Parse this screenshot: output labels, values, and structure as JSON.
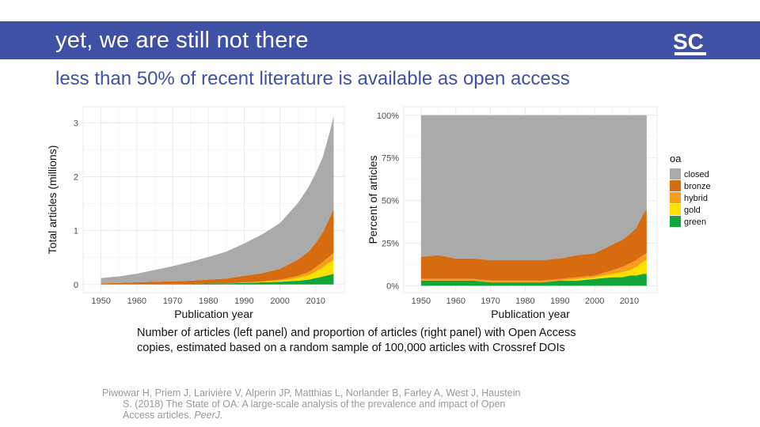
{
  "header": {
    "title": "yet, we are still not there",
    "logo_text": "SC",
    "logo_color": "#ffffff",
    "bar_color": "#3f51a5"
  },
  "subtitle": "less than 50% of recent literature is available as open access",
  "colors": {
    "closed": "#aaaaaa",
    "bronze": "#d66b0f",
    "hybrid": "#f99d1c",
    "gold": "#ffe100",
    "green": "#12a53a"
  },
  "chart_data": [
    {
      "type": "area",
      "stacked": true,
      "xlabel": "Publication year",
      "ylabel": "Total articles (millions)",
      "xlim": [
        1945,
        2018
      ],
      "ylim": [
        -0.15,
        3.3
      ],
      "x_ticks": [
        1950,
        1960,
        1970,
        1980,
        1990,
        2000,
        2010
      ],
      "y_ticks": [
        0,
        1,
        2,
        3
      ],
      "y_tick_labels": [
        "0",
        "1",
        "2",
        "3"
      ],
      "grid": true,
      "x": [
        1950,
        1955,
        1960,
        1965,
        1970,
        1975,
        1980,
        1985,
        1990,
        1995,
        2000,
        2005,
        2008,
        2010,
        2012,
        2014,
        2015
      ],
      "series": [
        {
          "name": "green",
          "values": [
            0.01,
            0.01,
            0.01,
            0.01,
            0.01,
            0.01,
            0.02,
            0.02,
            0.03,
            0.04,
            0.05,
            0.07,
            0.09,
            0.12,
            0.15,
            0.18,
            0.2
          ]
        },
        {
          "name": "gold",
          "values": [
            0.0,
            0.0,
            0.0,
            0.0,
            0.0,
            0.0,
            0.0,
            0.0,
            0.0,
            0.01,
            0.02,
            0.05,
            0.08,
            0.12,
            0.17,
            0.23,
            0.26
          ]
        },
        {
          "name": "hybrid",
          "values": [
            0.0,
            0.0,
            0.0,
            0.0,
            0.0,
            0.0,
            0.0,
            0.0,
            0.01,
            0.01,
            0.02,
            0.04,
            0.06,
            0.08,
            0.1,
            0.12,
            0.13
          ]
        },
        {
          "name": "bronze",
          "values": [
            0.01,
            0.02,
            0.03,
            0.04,
            0.05,
            0.06,
            0.07,
            0.09,
            0.12,
            0.15,
            0.2,
            0.3,
            0.38,
            0.45,
            0.55,
            0.72,
            0.82
          ]
        },
        {
          "name": "closed",
          "values": [
            0.1,
            0.12,
            0.16,
            0.22,
            0.28,
            0.35,
            0.42,
            0.5,
            0.6,
            0.72,
            0.85,
            1.05,
            1.2,
            1.3,
            1.4,
            1.6,
            1.72
          ]
        }
      ]
    },
    {
      "type": "area",
      "stacked": true,
      "xlabel": "Publication year",
      "ylabel": "Percent of articles",
      "xlim": [
        1945,
        2018
      ],
      "ylim": [
        -4,
        105
      ],
      "x_ticks": [
        1950,
        1960,
        1970,
        1980,
        1990,
        2000,
        2010
      ],
      "y_ticks": [
        0,
        25,
        50,
        75,
        100
      ],
      "y_tick_labels": [
        "0%",
        "25%",
        "50%",
        "75%",
        "100%"
      ],
      "grid": true,
      "legend": {
        "position": "right",
        "title": "oa"
      },
      "x": [
        1950,
        1955,
        1960,
        1965,
        1970,
        1975,
        1980,
        1985,
        1990,
        1995,
        2000,
        2005,
        2008,
        2010,
        2012,
        2014,
        2015
      ],
      "series": [
        {
          "name": "green",
          "values": [
            3,
            3,
            3,
            3,
            2,
            2,
            2,
            2,
            3,
            3,
            4,
            5,
            5,
            6,
            6,
            7,
            7
          ]
        },
        {
          "name": "gold",
          "values": [
            0,
            0,
            0,
            0,
            0,
            0,
            0,
            0,
            0,
            1,
            1,
            2,
            3,
            3,
            5,
            7,
            8
          ]
        },
        {
          "name": "hybrid",
          "values": [
            1,
            1,
            1,
            1,
            1,
            1,
            1,
            1,
            1,
            1,
            1,
            2,
            3,
            4,
            4,
            4,
            4
          ]
        },
        {
          "name": "bronze",
          "values": [
            13,
            14,
            12,
            12,
            12,
            12,
            12,
            12,
            12,
            13,
            13,
            15,
            16,
            17,
            19,
            24,
            26
          ]
        },
        {
          "name": "closed",
          "values": [
            83,
            82,
            84,
            84,
            85,
            85,
            85,
            85,
            84,
            82,
            81,
            76,
            73,
            70,
            66,
            58,
            55
          ]
        }
      ]
    }
  ],
  "caption": "Number of articles (left panel) and proportion of articles (right panel) with Open Access copies, estimated based on a random sample of 100,000 articles with Crossref DOIs",
  "citation": {
    "line1": "Piwowar H, Priem J, Larivière V, Alperin JP, Matthias L, Norlander B, Farley A, West J, Haustein",
    "line2": "S. (2018) The State of OA: A large-scale analysis of the prevalence and impact of Open",
    "line3": "Access articles. ",
    "journal": "PeerJ."
  }
}
